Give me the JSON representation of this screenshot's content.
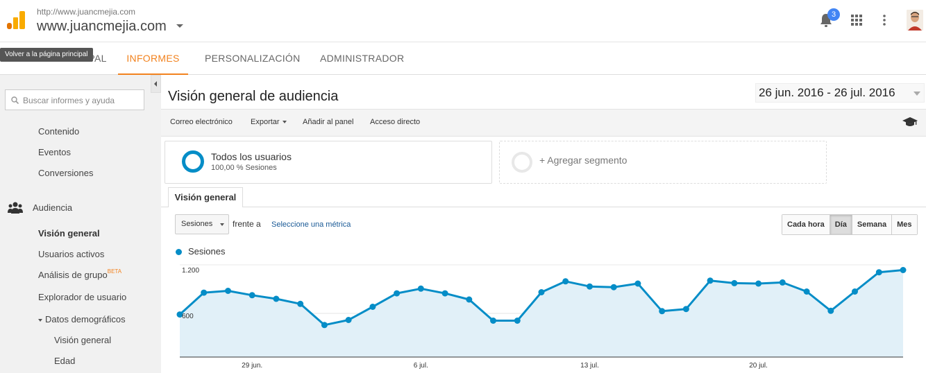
{
  "header": {
    "url_small": "http://www.juancmejia.com",
    "url_big": "www.juancmejia.com",
    "notification_count": "3"
  },
  "nav": {
    "tooltip": "Volver a la página principal",
    "tabs": [
      "PÁGINA PRINCIPAL",
      "INFORMES",
      "PERSONALIZACIÓN",
      "ADMINISTRADOR"
    ],
    "active_tab": "INFORMES"
  },
  "sidebar": {
    "search_placeholder": "Buscar informes y ayuda",
    "items": [
      "Contenido",
      "Eventos",
      "Conversiones"
    ],
    "audiencia": "Audiencia",
    "audiencia_items": [
      "Visión general",
      "Usuarios activos",
      "Análisis de grupo",
      "Explorador de usuario",
      "Datos demográficos"
    ],
    "beta": "BETA",
    "demo_items": [
      "Visión general",
      "Edad"
    ]
  },
  "main": {
    "title": "Visión general de audiencia",
    "date_range": "26 jun. 2016 - 26 jul. 2016",
    "toolbar": [
      "Correo electrónico",
      "Exportar",
      "Añadir al panel",
      "Acceso directo"
    ],
    "segment_name": "Todos los usuarios",
    "segment_sub": "100,00 % Sesiones",
    "add_segment": "+ Agregar segmento",
    "subtab": "Visión general",
    "metric": "Sesiones",
    "versus": "frente a",
    "select_metric": "Seleccione una métrica",
    "periods": [
      "Cada hora",
      "Día",
      "Semana",
      "Mes"
    ],
    "active_period": "Día"
  },
  "colors": {
    "accent": "#f2821e",
    "series": "#058dc7",
    "area": "#e1f0f8",
    "link": "#1a5a96"
  },
  "chart_data": {
    "type": "line",
    "series": [
      {
        "name": "Sesiones",
        "x": [
          "26 jun.",
          "27 jun.",
          "28 jun.",
          "29 jun.",
          "30 jun.",
          "1 jul.",
          "2 jul.",
          "3 jul.",
          "4 jul.",
          "5 jul.",
          "6 jul.",
          "7 jul.",
          "8 jul.",
          "9 jul.",
          "10 jul.",
          "11 jul.",
          "12 jul.",
          "13 jul.",
          "14 jul.",
          "15 jul.",
          "16 jul.",
          "17 jul.",
          "18 jul.",
          "19 jul.",
          "20 jul.",
          "21 jul.",
          "22 jul.",
          "23 jul.",
          "24 jul.",
          "25 jul.",
          "26 jul."
        ],
        "values": [
          585,
          885,
          910,
          850,
          800,
          730,
          440,
          510,
          690,
          875,
          940,
          875,
          790,
          500,
          500,
          890,
          1040,
          970,
          960,
          1010,
          630,
          660,
          1050,
          1015,
          1010,
          1025,
          900,
          635,
          900,
          1165,
          1195
        ]
      }
    ],
    "xticks": [
      "29 jun.",
      "6 jul.",
      "13 jul.",
      "20 jul."
    ],
    "yticks": [
      "600",
      "1.200"
    ],
    "ylim": [
      0,
      1200
    ],
    "grid": true,
    "legend": "top-left"
  }
}
